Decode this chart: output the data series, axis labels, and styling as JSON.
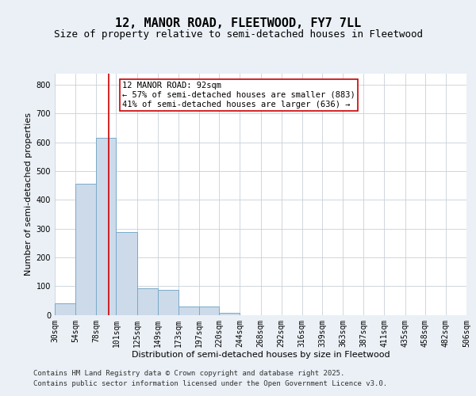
{
  "title": "12, MANOR ROAD, FLEETWOOD, FY7 7LL",
  "subtitle": "Size of property relative to semi-detached houses in Fleetwood",
  "xlabel": "Distribution of semi-detached houses by size in Fleetwood",
  "ylabel": "Number of semi-detached properties",
  "bar_edges": [
    30,
    54,
    78,
    101,
    125,
    149,
    173,
    197,
    220,
    244,
    268,
    292,
    316,
    339,
    363,
    387,
    411,
    435,
    458,
    482,
    506
  ],
  "bar_heights": [
    40,
    455,
    615,
    287,
    93,
    88,
    30,
    30,
    8,
    0,
    0,
    0,
    0,
    0,
    0,
    0,
    0,
    0,
    0,
    0
  ],
  "bar_color": "#ccdaea",
  "bar_edge_color": "#7aaac8",
  "vline_x": 92,
  "vline_color": "#cc0000",
  "annotation_title": "12 MANOR ROAD: 92sqm",
  "annotation_line1": "← 57% of semi-detached houses are smaller (883)",
  "annotation_line2": "41% of semi-detached houses are larger (636) →",
  "annotation_box_color": "#cc0000",
  "ylim": [
    0,
    840
  ],
  "yticks": [
    0,
    100,
    200,
    300,
    400,
    500,
    600,
    700,
    800
  ],
  "tick_labels": [
    "30sqm",
    "54sqm",
    "78sqm",
    "101sqm",
    "125sqm",
    "149sqm",
    "173sqm",
    "197sqm",
    "220sqm",
    "244sqm",
    "268sqm",
    "292sqm",
    "316sqm",
    "339sqm",
    "363sqm",
    "387sqm",
    "411sqm",
    "435sqm",
    "458sqm",
    "482sqm",
    "506sqm"
  ],
  "footer_line1": "Contains HM Land Registry data © Crown copyright and database right 2025.",
  "footer_line2": "Contains public sector information licensed under the Open Government Licence v3.0.",
  "background_color": "#eaf0f6",
  "plot_background": "#ffffff",
  "grid_color": "#c8d0d8",
  "title_fontsize": 11,
  "subtitle_fontsize": 9,
  "axis_label_fontsize": 8,
  "tick_fontsize": 7,
  "annotation_fontsize": 7.5,
  "footer_fontsize": 6.5
}
